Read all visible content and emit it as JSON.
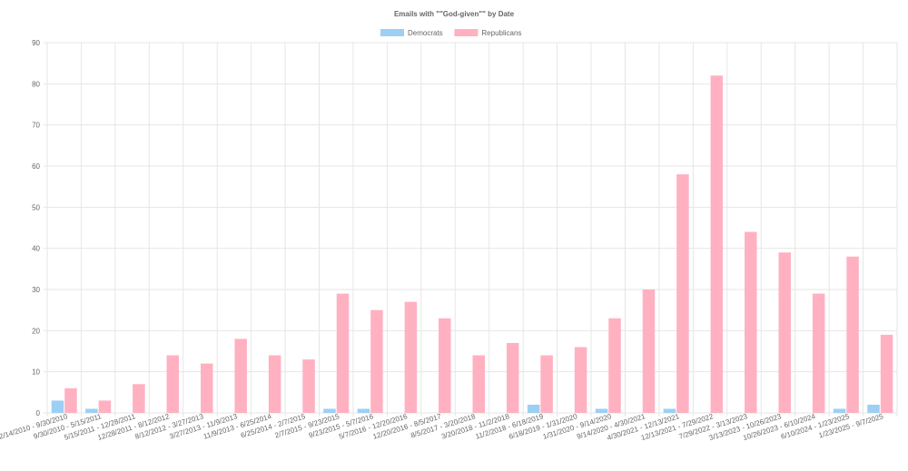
{
  "chart_data": {
    "type": "bar",
    "title": "Emails with \"\"God-given\"\" by Date",
    "xlabel": "",
    "ylabel": "",
    "ylim": [
      0,
      90
    ],
    "yticks": [
      0,
      10,
      20,
      30,
      40,
      50,
      60,
      70,
      80,
      90
    ],
    "grid": true,
    "legend_position": "top-center",
    "categories": [
      "2/14/2010 - 9/30/2010",
      "9/30/2010 - 5/15/2011",
      "5/15/2011 - 12/28/2011",
      "12/28/2011 - 8/12/2012",
      "8/12/2012 - 3/27/2013",
      "3/27/2013 - 11/9/2013",
      "11/9/2013 - 6/25/2014",
      "6/25/2014 - 2/7/2015",
      "2/7/2015 - 9/23/2015",
      "9/23/2015 - 5/7/2016",
      "5/7/2016 - 12/20/2016",
      "12/20/2016 - 8/5/2017",
      "8/5/2017 - 3/20/2018",
      "3/20/2018 - 11/2/2018",
      "11/2/2018 - 6/18/2019",
      "6/18/2019 - 1/31/2020",
      "1/31/2020 - 9/14/2020",
      "9/14/2020 - 4/30/2021",
      "4/30/2021 - 12/13/2021",
      "12/13/2021 - 7/29/2022",
      "7/29/2022 - 3/13/2023",
      "3/13/2023 - 10/26/2023",
      "10/26/2023 - 6/10/2024",
      "6/10/2024 - 1/23/2025",
      "1/23/2025 - 9/7/2025"
    ],
    "series": [
      {
        "name": "Democrats",
        "color": "#9ccff3",
        "border_color": "#6cb7ec",
        "values": [
          3,
          1,
          0,
          0,
          0,
          0,
          0,
          0,
          1,
          1,
          0,
          0,
          0,
          0,
          2,
          0,
          1,
          0,
          1,
          0,
          0,
          0,
          0,
          1,
          2
        ]
      },
      {
        "name": "Republicans",
        "color": "#ffb1c1",
        "border_color": "#ff7f9c",
        "values": [
          6,
          3,
          7,
          14,
          12,
          18,
          14,
          13,
          29,
          25,
          27,
          23,
          14,
          17,
          14,
          16,
          23,
          30,
          58,
          82,
          44,
          39,
          29,
          38,
          19
        ]
      }
    ]
  }
}
